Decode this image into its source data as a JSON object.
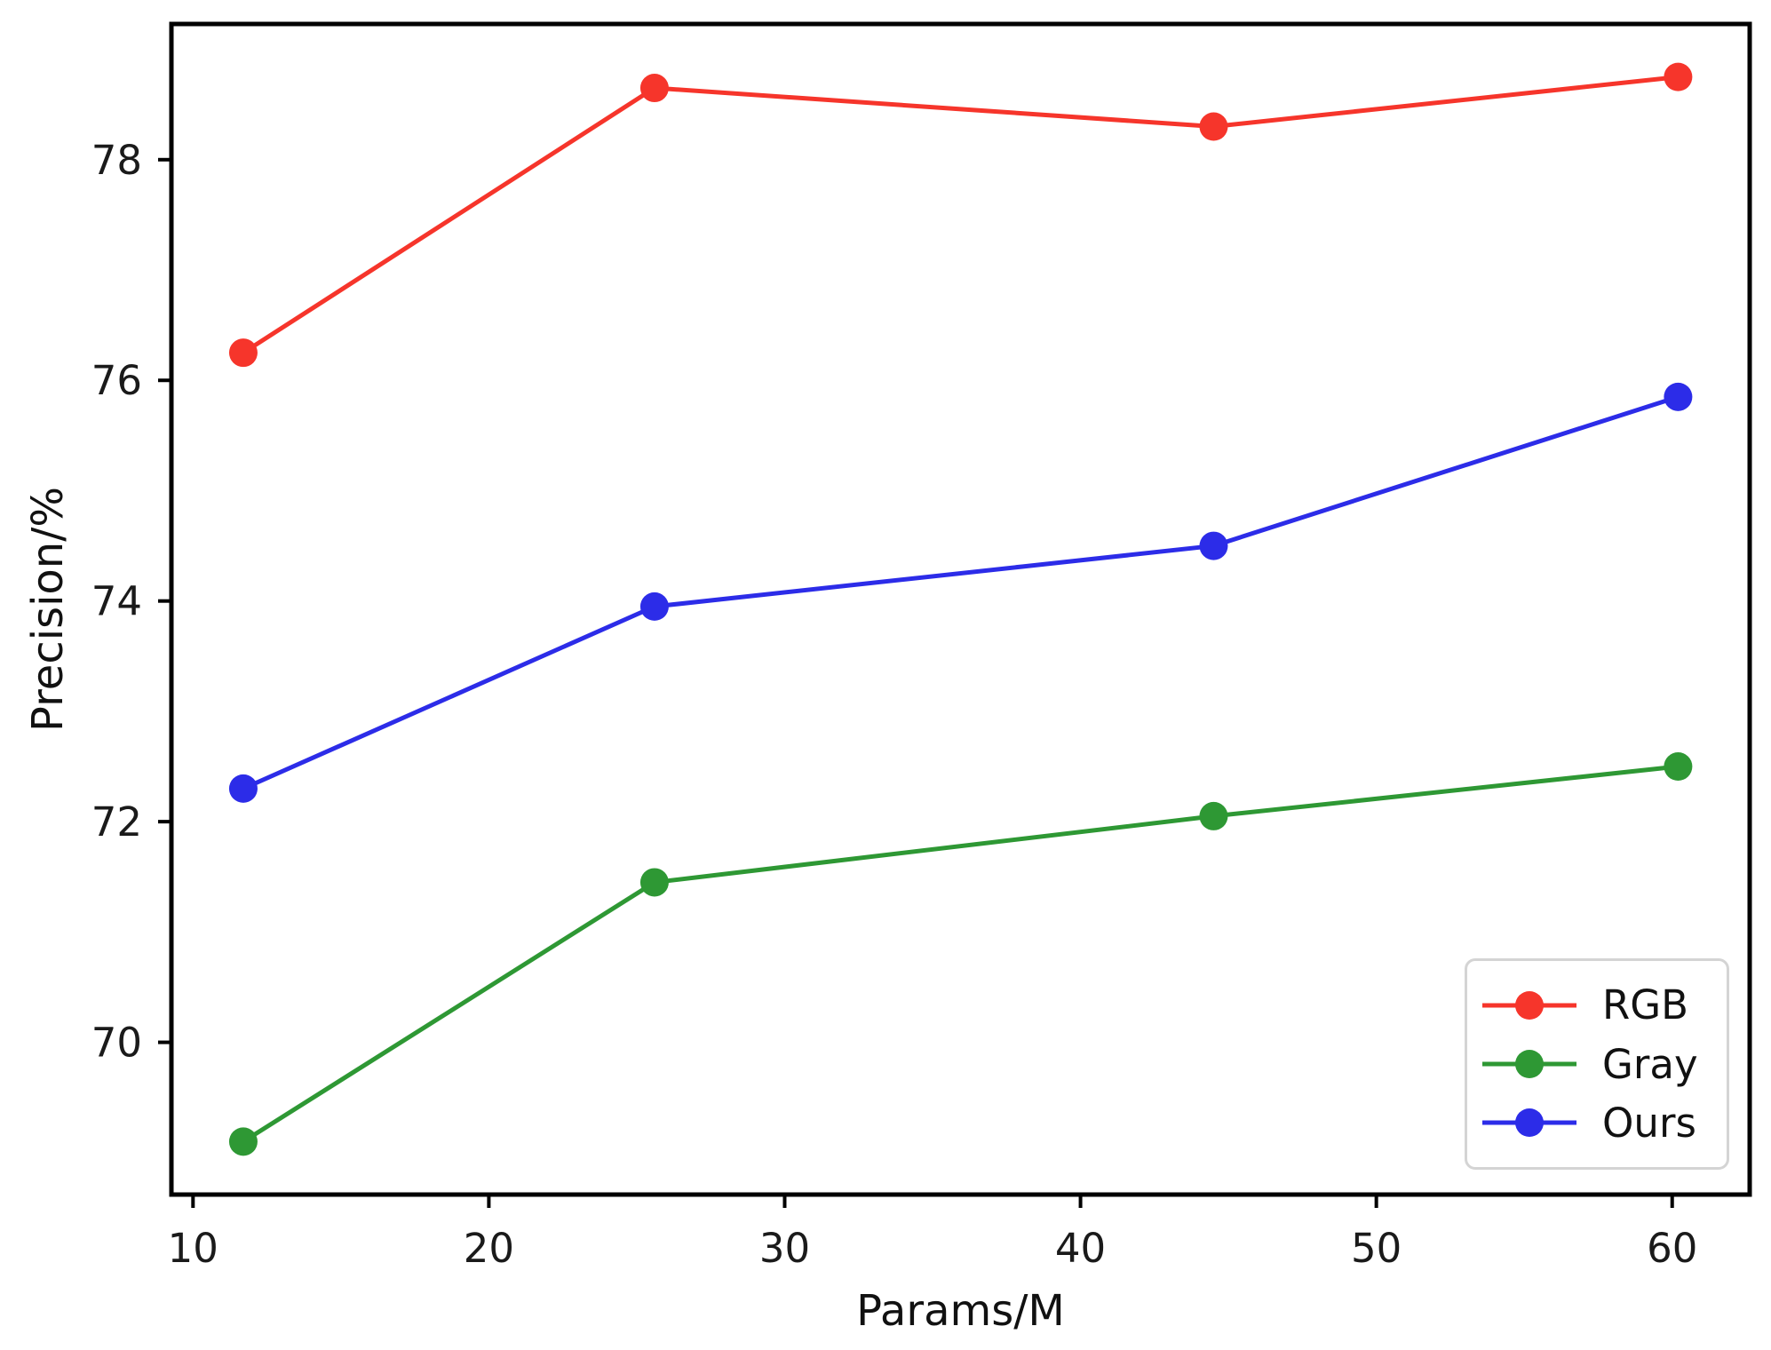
{
  "chart_data": {
    "type": "line",
    "x": [
      11.7,
      25.6,
      44.5,
      60.2
    ],
    "series": [
      {
        "name": "RGB",
        "color": "#f6352b",
        "values": [
          76.25,
          78.65,
          78.3,
          78.75
        ]
      },
      {
        "name": "Gray",
        "color": "#2e9834",
        "values": [
          69.1,
          71.45,
          72.05,
          72.5
        ]
      },
      {
        "name": "Ours",
        "color": "#2c2ce8",
        "values": [
          72.3,
          73.95,
          74.5,
          75.85
        ]
      }
    ],
    "title": "",
    "xlabel": "Params/M",
    "ylabel": "Precision/%",
    "xticks": [
      10,
      20,
      30,
      40,
      50,
      60
    ],
    "yticks": [
      70,
      72,
      74,
      76,
      78
    ],
    "xlim": [
      9.27,
      62.62
    ],
    "ylim": [
      68.62,
      79.23
    ],
    "grid": false,
    "marker": "circle",
    "legend": {
      "position": "lower right",
      "labels": [
        "RGB",
        "Gray",
        "Ours"
      ]
    }
  },
  "axis_color": "#000000",
  "tick_label_color": "#1a1a1a"
}
